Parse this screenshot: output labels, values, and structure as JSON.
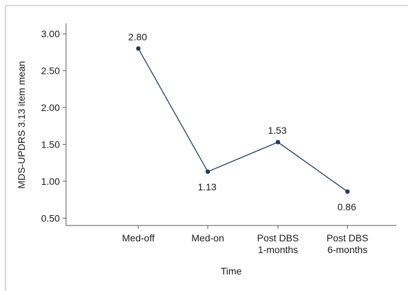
{
  "chart_data": {
    "type": "line",
    "xlabel": "Time",
    "ylabel": "MDS-UPDRS 3.13 item mean",
    "categories": [
      "Med-off",
      "Med-on",
      "Post DBS\n1-months",
      "Post DBS\n6-months"
    ],
    "values": [
      2.8,
      1.13,
      1.53,
      0.86
    ],
    "value_labels": [
      "2.80",
      "1.13",
      "1.53",
      "0.86"
    ],
    "y_ticks": [
      "3.00",
      "2.50",
      "2.00",
      "1.50",
      "1.00",
      "0.50"
    ],
    "y_tick_values": [
      3.0,
      2.5,
      2.0,
      1.5,
      1.0,
      0.5
    ],
    "ylim": [
      0.4,
      3.14
    ],
    "grid": false,
    "line_color": "#1f3a5f",
    "marker_color": "#1f3a5f"
  }
}
